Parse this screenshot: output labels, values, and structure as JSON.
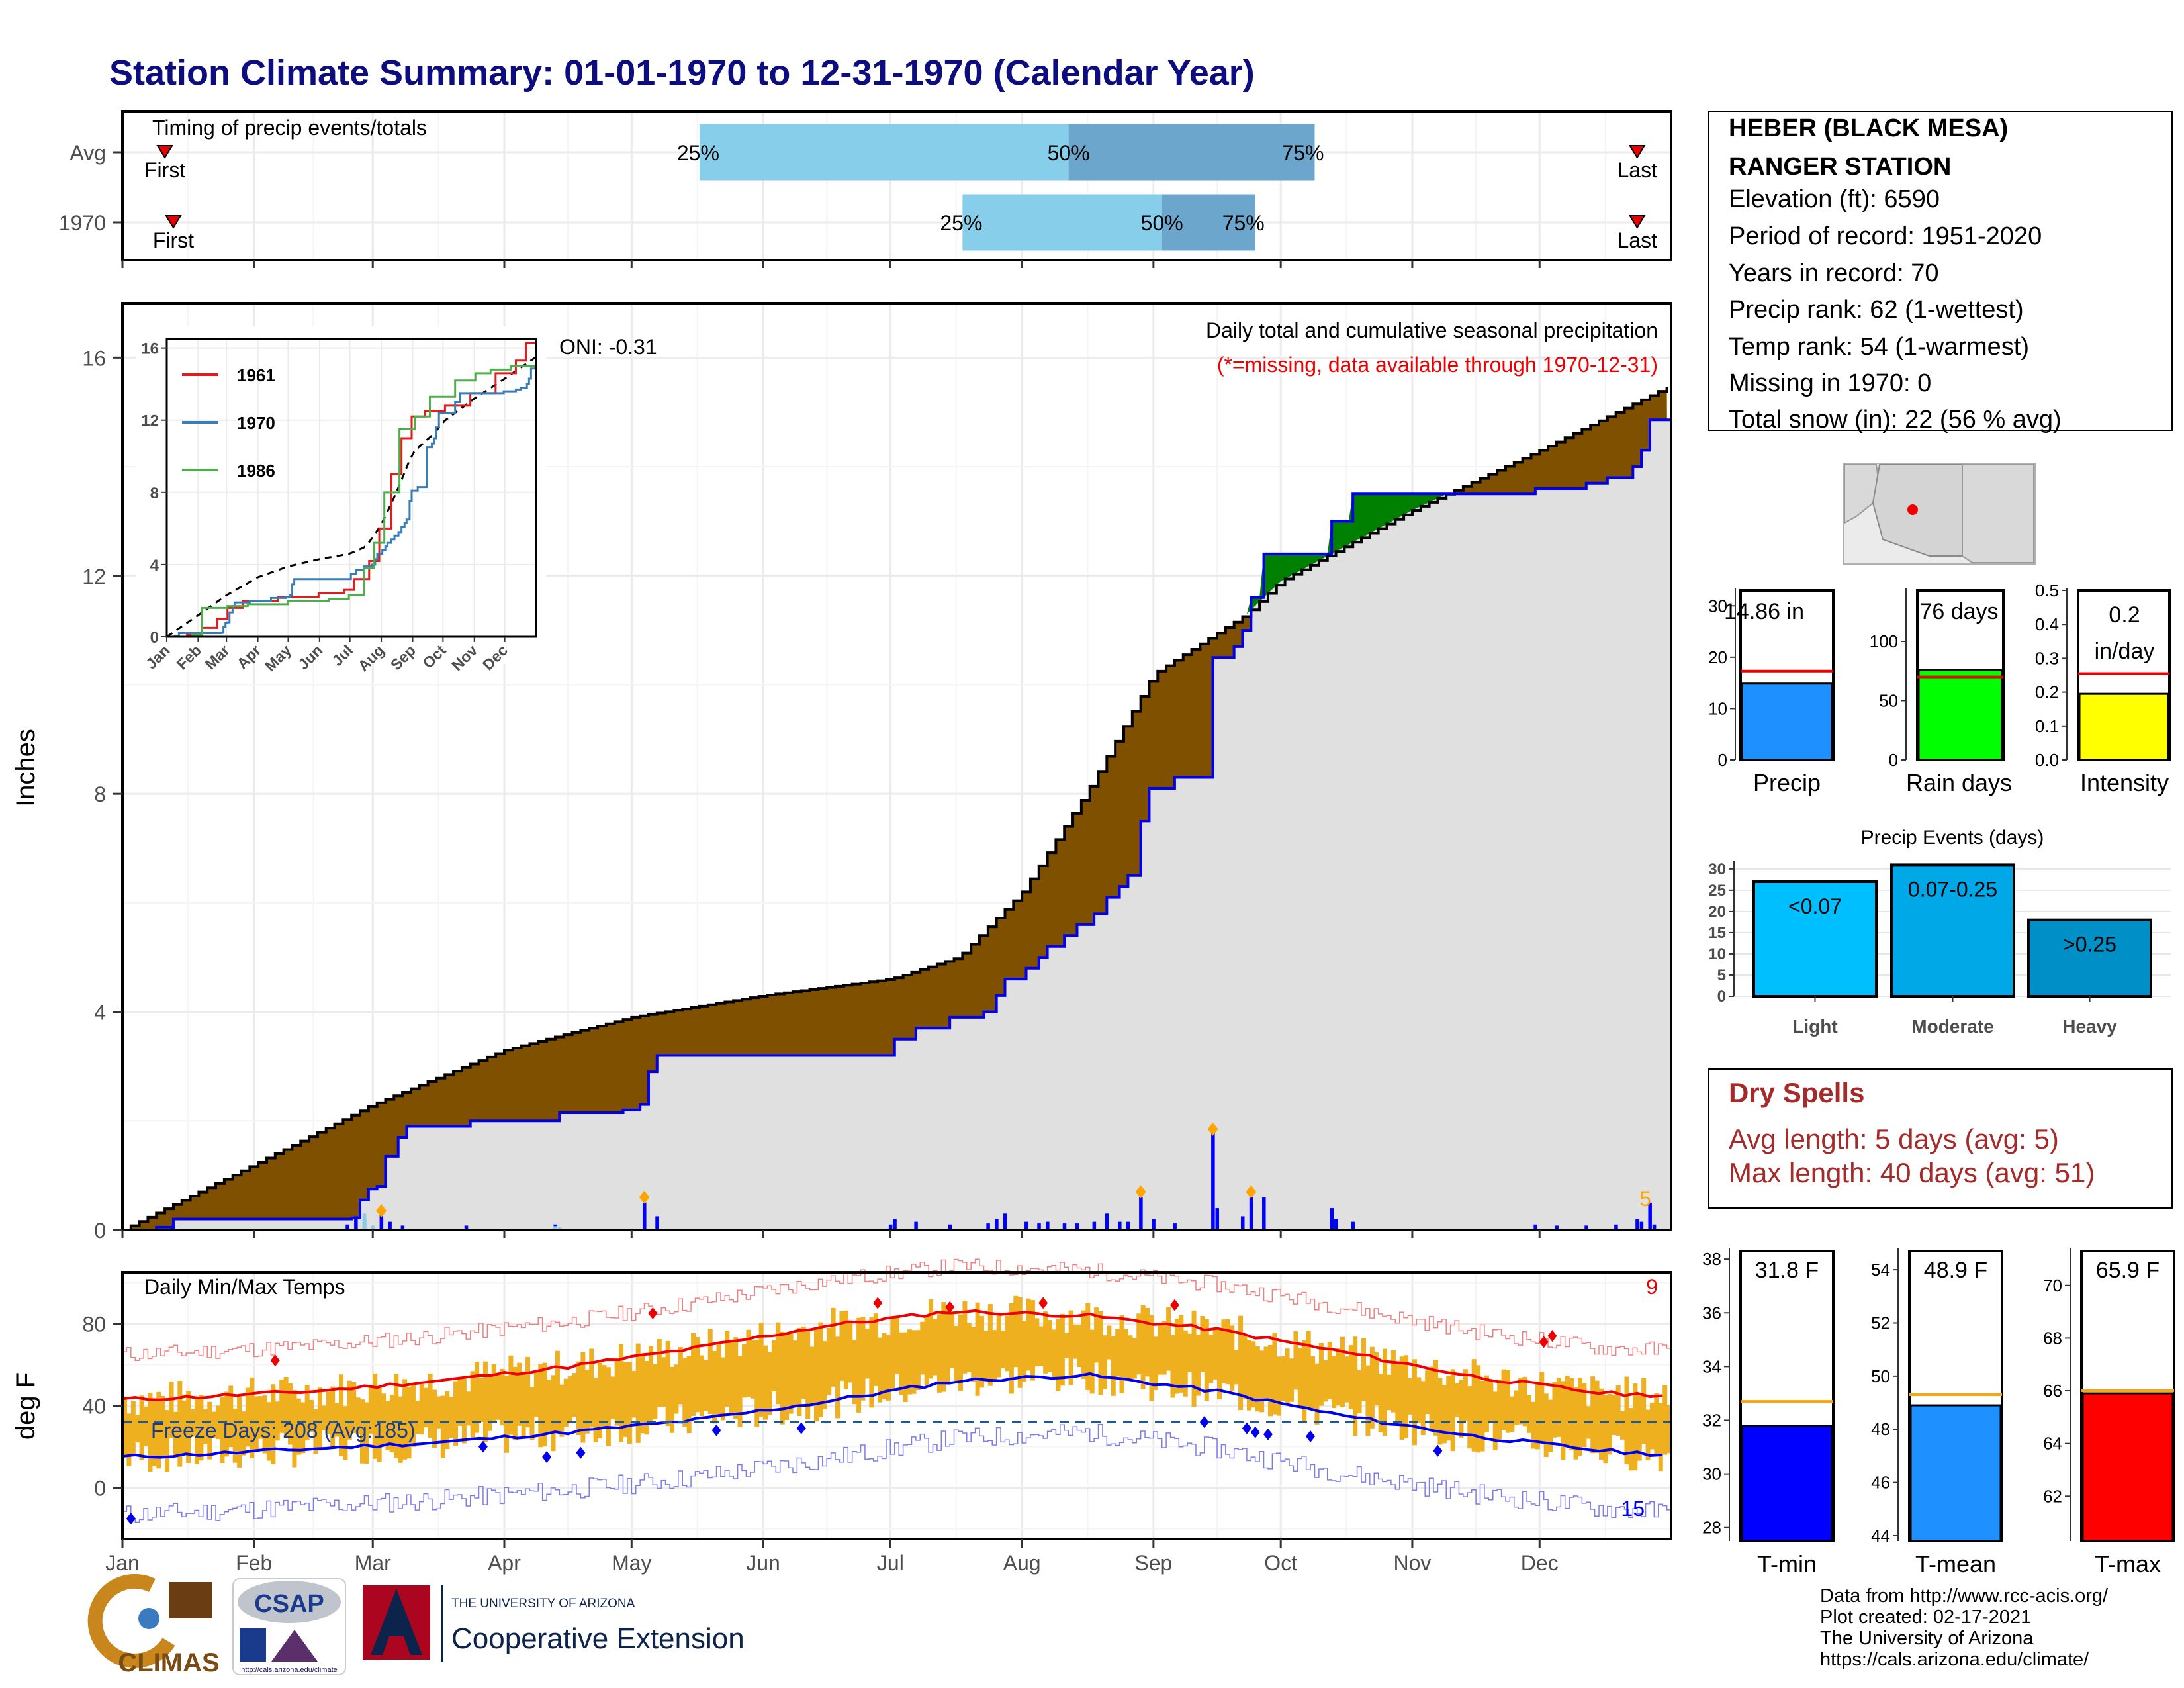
{
  "header": {
    "title": "Station Climate Summary: 01-01-1970 to 12-31-1970 (Calendar Year)"
  },
  "colors": {
    "title_navy": "#0d0d80",
    "cumulative_brown": "#7f5000",
    "above_avg_green": "#008000",
    "obs_blue": "#0000ee",
    "missing_cyan": "#87ceeb",
    "temp_bar": "#efb020",
    "tmax_red": "#ee0000",
    "tmin_blue": "#0000ee",
    "event_orange": "#ffa500",
    "dry_spell_red": "#a52a2a"
  },
  "months": [
    "Jan",
    "Feb",
    "Mar",
    "Apr",
    "May",
    "Jun",
    "Jul",
    "Aug",
    "Sep",
    "Oct",
    "Nov",
    "Dec"
  ],
  "timing": {
    "title": "Timing of precip events/totals",
    "rows": [
      {
        "label": "Avg",
        "first": "First",
        "last": "Last",
        "first_day": 10,
        "last_day": 357,
        "p25_day": 136,
        "p50_day": 223,
        "p75_day": 281,
        "p25": "25%",
        "p50": "50%",
        "p75": "75%"
      },
      {
        "label": "1970",
        "first": "First",
        "last": "Last",
        "first_day": 12,
        "last_day": 357,
        "p25_day": 198,
        "p50_day": 245,
        "p75_day": 267,
        "p25": "25%",
        "p50": "50%",
        "p75": "75%"
      }
    ]
  },
  "precip": {
    "ylabel": "Inches",
    "title": "Daily total and cumulative seasonal precipitation",
    "subtitle": "(*=missing, data available through 1970-12-31)",
    "oni": "ONI: -0.31",
    "event_count": "5",
    "ylim": [
      0,
      17
    ],
    "yticks": [
      "0",
      "4",
      "8",
      "12",
      "16"
    ]
  },
  "inset": {
    "yticks": [
      "0",
      "4",
      "8",
      "12",
      "16"
    ],
    "xticks": [
      "Jan",
      "Feb",
      "Mar",
      "Apr",
      "May",
      "Jun",
      "Jul",
      "Aug",
      "Sep",
      "Oct",
      "Nov",
      "Dec"
    ],
    "legend": [
      {
        "name": "1961",
        "color": "#e41a1c"
      },
      {
        "name": "1970",
        "color": "#377eb8"
      },
      {
        "name": "1986",
        "color": "#4daf4a"
      }
    ]
  },
  "station": {
    "name1": "HEBER (BLACK MESA)",
    "name2": "RANGER STATION",
    "elevation": "Elevation (ft): 6590",
    "period": "Period of record: 1951-2020",
    "years": "Years in record: 70",
    "precip_rank": "Precip rank: 62 (1-wettest)",
    "temp_rank": "Temp rank: 54 (1-warmest)",
    "missing": "Missing in 1970: 0",
    "snow": "Total snow (in): 22 (56 % avg)"
  },
  "summary_bars": [
    {
      "name": "precip",
      "label": "Precip",
      "value_label": "14.86 in",
      "value": 14.86,
      "avg": 17.3,
      "ymax": 33,
      "yticks": [
        "0",
        "10",
        "20",
        "30"
      ],
      "tick_vals": [
        0,
        10,
        20,
        30
      ],
      "color": "#1e90ff"
    },
    {
      "name": "rain-days",
      "label": "Rain days",
      "value_label": "76 days",
      "value": 76,
      "avg": 70,
      "ymax": 143,
      "yticks": [
        "0",
        "50",
        "100"
      ],
      "tick_vals": [
        0,
        50,
        100
      ],
      "color": "#00ff00"
    },
    {
      "name": "intensity",
      "label": "Intensity",
      "value_label1": "0.2",
      "value_label2": "in/day",
      "value": 0.195,
      "avg": 0.255,
      "ymax": 0.5,
      "yticks": [
        "0.0",
        "0.1",
        "0.2",
        "0.3",
        "0.4",
        "0.5"
      ],
      "tick_vals": [
        0,
        0.1,
        0.2,
        0.3,
        0.4,
        0.5
      ],
      "color": "#ffff00"
    }
  ],
  "events": {
    "title": "Precip Events (days)",
    "yticks": [
      "0",
      "5",
      "10",
      "15",
      "20",
      "25",
      "30"
    ],
    "bars": [
      {
        "name": "light",
        "label": "Light",
        "value_label": "<0.07",
        "value": 27,
        "color": "#00bfff"
      },
      {
        "name": "moderate",
        "label": "Moderate",
        "value_label": "0.07-0.25",
        "value": 31,
        "color": "#00a8e8"
      },
      {
        "name": "heavy",
        "label": "Heavy",
        "value_label": ">0.25",
        "value": 18,
        "color": "#0090c8"
      }
    ]
  },
  "dry_spells": {
    "title": "Dry Spells",
    "avg": "Avg length: 5 days (avg: 5)",
    "max": "Max length: 40 days (avg: 51)"
  },
  "temps": {
    "ylabel": "deg F",
    "title": "Daily Min/Max Temps",
    "freeze": "Freeze Days: 208 (Avg:185)",
    "hot_count": "9",
    "cold_count": "15",
    "yticks": [
      "0",
      "40",
      "80"
    ]
  },
  "temp_bars": [
    {
      "name": "tmin",
      "label": "T-min",
      "value_label": "31.8 F",
      "value": 31.8,
      "avg": 32.7,
      "ymin": 27.5,
      "ymax": 38.3,
      "yticks": [
        "28",
        "30",
        "32",
        "34",
        "36",
        "38"
      ],
      "tick_vals": [
        28,
        30,
        32,
        34,
        36,
        38
      ],
      "color": "#0000ff"
    },
    {
      "name": "tmean",
      "label": "T-mean",
      "value_label": "48.9 F",
      "value": 48.9,
      "avg": 49.3,
      "ymin": 43.8,
      "ymax": 54.7,
      "yticks": [
        "44",
        "46",
        "48",
        "50",
        "52",
        "54"
      ],
      "tick_vals": [
        44,
        46,
        48,
        50,
        52,
        54
      ],
      "color": "#1e90ff"
    },
    {
      "name": "tmax",
      "label": "T-max",
      "value_label": "65.9 F",
      "value": 65.9,
      "avg": 66.0,
      "ymin": 60.3,
      "ymax": 71.3,
      "yticks": [
        "62",
        "64",
        "66",
        "68",
        "70"
      ],
      "tick_vals": [
        62,
        64,
        66,
        68,
        70
      ],
      "color": "#ff0000"
    }
  ],
  "credits": {
    "line1": "Data from http://www.rcc-acis.org/",
    "line2": "Plot created: 02-17-2021",
    "line3": "The University of Arizona",
    "line4": "https://cals.arizona.edu/climate/"
  },
  "logos": {
    "climas": "CLIMAS",
    "csap": "CSAP",
    "csap_url": "http://cals.arizona.edu/climate",
    "ua_small": "THE UNIVERSITY OF ARIZONA",
    "ua_big": "Cooperative Extension"
  },
  "chart_data": [
    {
      "type": "area",
      "name": "cumulative precipitation",
      "x": [
        "Jan-01",
        "Feb-01",
        "Mar-01",
        "Apr-01",
        "May-01",
        "Jun-01",
        "Jul-01",
        "Aug-01",
        "Sep-01",
        "Oct-01",
        "Nov-01",
        "Dec-01",
        "Dec-31"
      ],
      "series": [
        {
          "name": "Average",
          "values": [
            0.0,
            1.2,
            2.3,
            3.3,
            3.9,
            4.3,
            4.6,
            6.2,
            10.2,
            11.9,
            13.2,
            14.3,
            15.5
          ]
        },
        {
          "name": "1970",
          "values": [
            0.0,
            0.2,
            0.2,
            2.0,
            3.2,
            3.2,
            3.5,
            5.8,
            8.3,
            13.5,
            13.6,
            13.8,
            14.86
          ]
        }
      ],
      "ylabel": "Inches",
      "ylim": [
        0,
        17
      ]
    },
    {
      "type": "line",
      "name": "daily temperatures",
      "x": [
        "Jan",
        "Feb",
        "Mar",
        "Apr",
        "May",
        "Jun",
        "Jul",
        "Aug",
        "Sep",
        "Oct",
        "Nov",
        "Dec"
      ],
      "series": [
        {
          "name": "avg max",
          "values": [
            44,
            47,
            52,
            59,
            68,
            79,
            85,
            82,
            77,
            66,
            54,
            46
          ]
        },
        {
          "name": "avg min",
          "values": [
            16,
            19,
            22,
            27,
            33,
            42,
            51,
            53,
            46,
            35,
            25,
            18
          ]
        }
      ],
      "ylabel": "deg F",
      "ylim": [
        -25,
        105
      ]
    }
  ]
}
